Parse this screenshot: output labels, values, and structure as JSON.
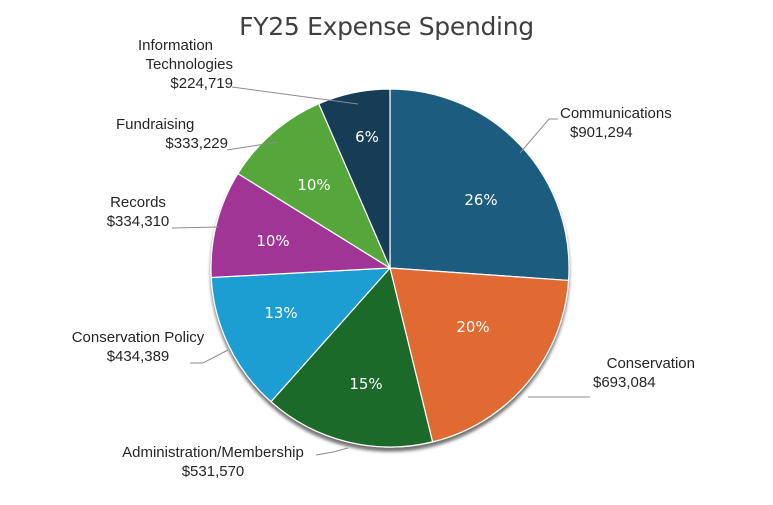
{
  "chart_data": {
    "type": "pie",
    "title": "FY25 Expense Spending",
    "start_angle": "12 o'clock, clockwise",
    "slices": [
      {
        "label": "Communications",
        "value": 901294,
        "value_label": "$901,294",
        "percent_label": "26%",
        "color": "#1b5c7e"
      },
      {
        "label": "Conservation",
        "value": 693084,
        "value_label": "$693,084",
        "percent_label": "20%",
        "color": "#e06a30"
      },
      {
        "label": "Administration/Membership",
        "value": 531570,
        "value_label": "$531,570",
        "percent_label": "15%",
        "color": "#1e6a2a"
      },
      {
        "label": "Conservation Policy",
        "value": 434389,
        "value_label": "$434,389",
        "percent_label": "13%",
        "color": "#1b9ed3"
      },
      {
        "label": "Records",
        "value": 334310,
        "value_label": "$334,310",
        "percent_label": "10%",
        "color": "#a03596"
      },
      {
        "label": "Fundraising",
        "value": 333229,
        "value_label": "$333,229",
        "percent_label": "10%",
        "color": "#56a73a"
      },
      {
        "label": "Information Technologies",
        "value": 224719,
        "value_label": "$224,719",
        "percent_label": "6%",
        "color": "#183d54"
      }
    ],
    "categories": [
      "Communications",
      "Conservation",
      "Administration/Membership",
      "Conservation Policy",
      "Records",
      "Fundraising",
      "Information Technologies"
    ],
    "values": [
      901294,
      693084,
      531570,
      434389,
      334310,
      333229,
      224719
    ],
    "legend": "none (data callout labels)"
  },
  "labels": {
    "communications": {
      "name": "Communications",
      "value": "$901,294",
      "pct": "26%"
    },
    "conservation": {
      "name": "Conservation",
      "value": "$693,084",
      "pct": "20%"
    },
    "admin": {
      "name": "Administration/Membership",
      "value": "$531,570",
      "pct": "15%"
    },
    "policy": {
      "name": "Conservation Policy",
      "value": "$434,389",
      "pct": "13%"
    },
    "records": {
      "name": "Records",
      "value": "$334,310",
      "pct": "10%"
    },
    "fundraising": {
      "name": "Fundraising",
      "value": "$333,229",
      "pct": "10%"
    },
    "it": {
      "name_line1": "Information",
      "name_line2": "Technologies",
      "value": "$224,719",
      "pct": "6%"
    }
  }
}
